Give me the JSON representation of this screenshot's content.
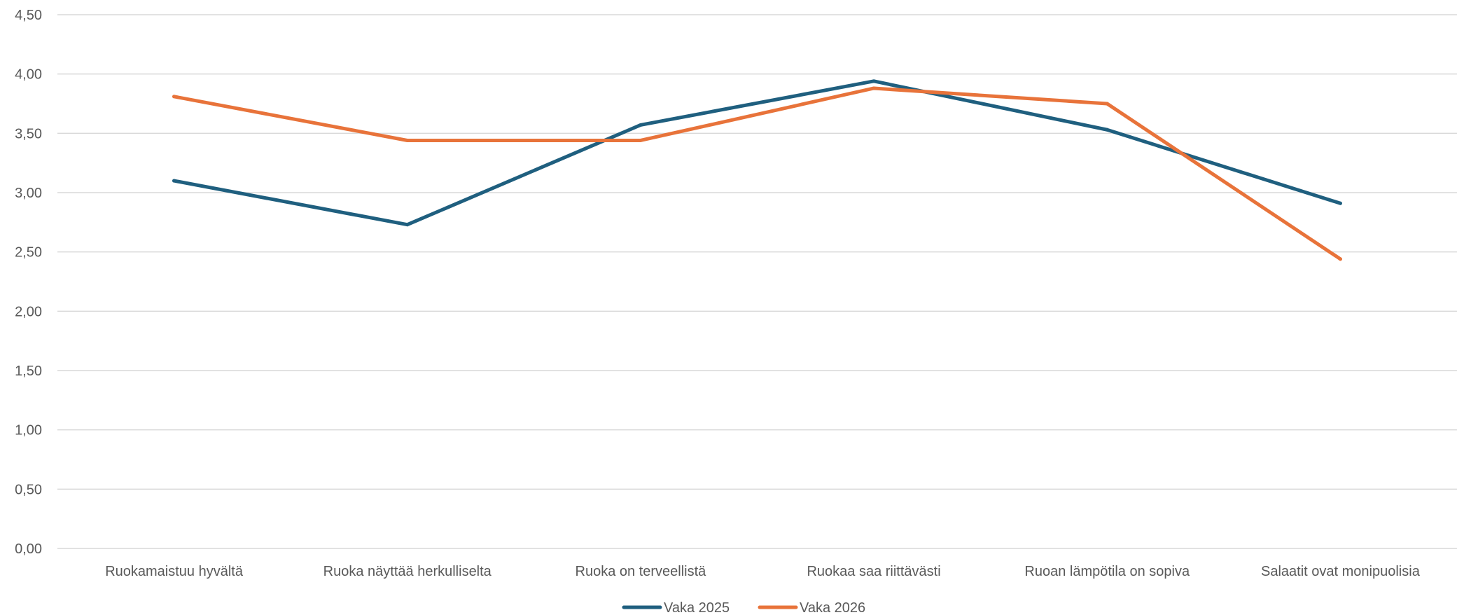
{
  "chart_data": {
    "type": "line",
    "categories": [
      "Ruokamaistuu hyvältä",
      "Ruoka näyttää herkulliselta",
      "Ruoka on terveellistä",
      "Ruokaa saa riittävästi",
      "Ruoan lämpötila on sopiva",
      "Salaatit ovat monipuolisia"
    ],
    "series": [
      {
        "name": "Vaka 2025",
        "color": "#1f5f7f",
        "values": [
          3.1,
          2.73,
          3.57,
          3.94,
          3.53,
          2.91
        ]
      },
      {
        "name": "Vaka 2026",
        "color": "#e8733a",
        "values": [
          3.81,
          3.44,
          3.44,
          3.88,
          3.75,
          2.44
        ]
      }
    ],
    "ylim": [
      0,
      4.5
    ],
    "yticks": [
      "0,00",
      "0,50",
      "1,00",
      "1,50",
      "2,00",
      "2,50",
      "3,00",
      "3,50",
      "4,00",
      "4,50"
    ],
    "grid": true,
    "legend_position": "bottom"
  }
}
